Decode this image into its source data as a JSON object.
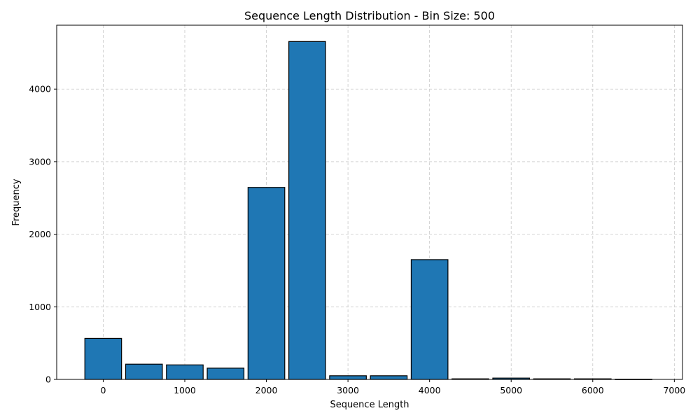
{
  "chart_data": {
    "type": "bar",
    "title": "Sequence Length Distribution - Bin Size: 500",
    "xlabel": "Sequence Length",
    "ylabel": "Frequency",
    "bin_size": 500,
    "bins": [
      {
        "x": 0,
        "value": 565
      },
      {
        "x": 500,
        "value": 210
      },
      {
        "x": 1000,
        "value": 200
      },
      {
        "x": 1500,
        "value": 155
      },
      {
        "x": 2000,
        "value": 2645
      },
      {
        "x": 2500,
        "value": 4655
      },
      {
        "x": 3000,
        "value": 50
      },
      {
        "x": 3500,
        "value": 50
      },
      {
        "x": 4000,
        "value": 1650
      },
      {
        "x": 4500,
        "value": 8
      },
      {
        "x": 5000,
        "value": 18
      },
      {
        "x": 5500,
        "value": 8
      },
      {
        "x": 6000,
        "value": 8
      },
      {
        "x": 6500,
        "value": 2
      }
    ],
    "xlim": [
      -570,
      7100
    ],
    "ylim": [
      0,
      4880
    ],
    "xticks": [
      0,
      1000,
      2000,
      3000,
      4000,
      5000,
      6000,
      7000
    ],
    "yticks": [
      0,
      1000,
      2000,
      3000,
      4000
    ],
    "grid": true,
    "colors": {
      "bar_fill": "#1f77b4",
      "bar_edge": "#000000",
      "grid": "#c8c8c8"
    }
  }
}
